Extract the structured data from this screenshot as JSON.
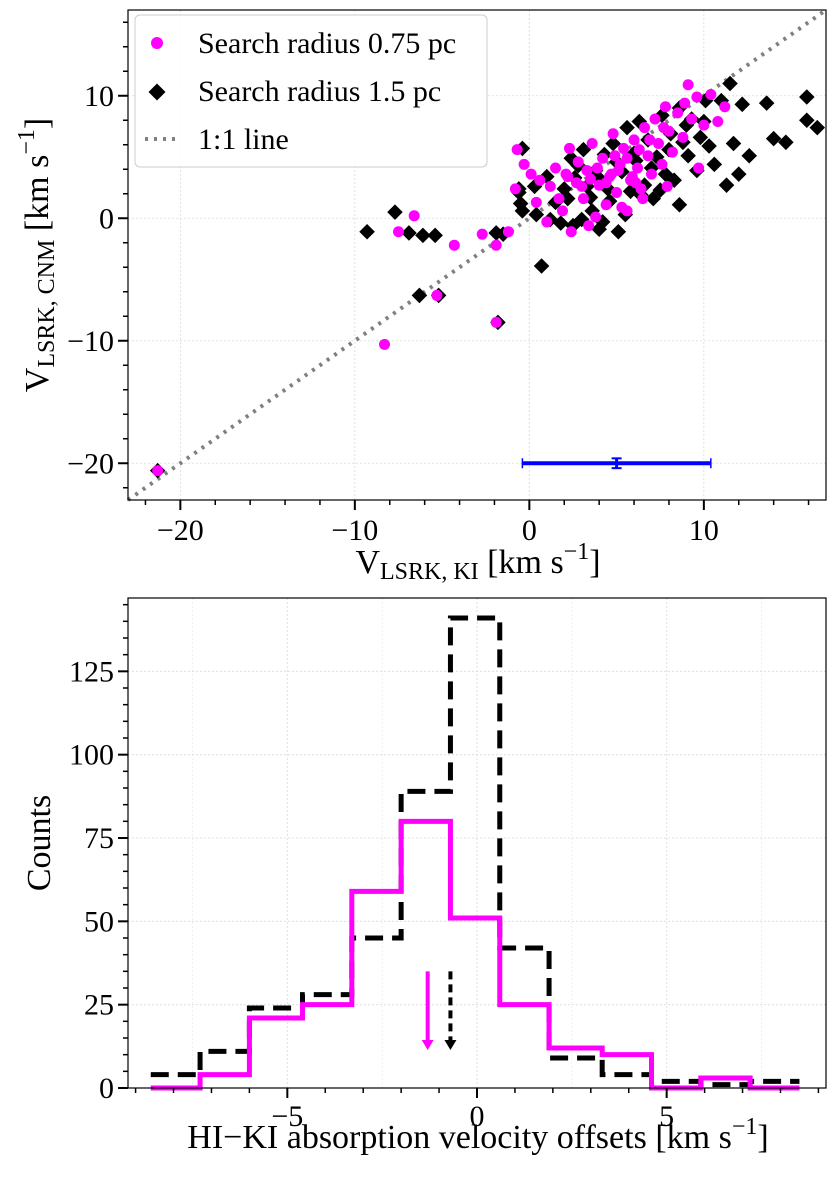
{
  "chart_data": [
    {
      "type": "scatter",
      "xlabel": {
        "main": "V",
        "sub": "LSRK, KI",
        "unit": "[km s",
        "exp": "−1",
        "close": "]"
      },
      "ylabel": {
        "main": "V",
        "sub": "LSRK, CNM",
        "unit": "[km s",
        "exp": "−1",
        "close": "]"
      },
      "xlim": [
        -23,
        17
      ],
      "ylim": [
        -23,
        17
      ],
      "xticks": [
        -20,
        -10,
        0,
        10
      ],
      "xtick_labels": [
        "−20",
        "−10",
        "0",
        "10"
      ],
      "yticks": [
        -20,
        -10,
        0,
        10
      ],
      "ytick_labels": [
        "−20",
        "−10",
        "0",
        "10"
      ],
      "grid": true,
      "legend_position": "top-left",
      "legend": [
        {
          "label": "Search radius 0.75 pc",
          "marker": "circle",
          "color": "#ff00ff"
        },
        {
          "label": "Search radius 1.5 pc",
          "marker": "diamond",
          "color": "#000000"
        },
        {
          "label": "1:1 line",
          "marker": "dotted-line",
          "color": "#808080"
        }
      ],
      "series": [
        {
          "name": "Search radius 1.5 pc",
          "color": "#000000",
          "marker": "diamond",
          "points": [
            [
              -21.3,
              -20.6
            ],
            [
              -9.3,
              -1.1
            ],
            [
              -7.7,
              0.5
            ],
            [
              -6.9,
              -1.2
            ],
            [
              -6.3,
              -6.3
            ],
            [
              -6.1,
              -1.4
            ],
            [
              -5.4,
              -1.4
            ],
            [
              -5.2,
              -6.3
            ],
            [
              -1.8,
              -8.5
            ],
            [
              -1.9,
              -1.2
            ],
            [
              -1.5,
              -1.3
            ],
            [
              -0.6,
              2.1
            ],
            [
              -0.6,
              2.4
            ],
            [
              -0.5,
              1.2
            ],
            [
              -0.4,
              5.7
            ],
            [
              -0.4,
              0.6
            ],
            [
              0.3,
              2.6
            ],
            [
              0.4,
              0.3
            ],
            [
              0.7,
              -3.9
            ],
            [
              1.0,
              3.4
            ],
            [
              1.2,
              -0.1
            ],
            [
              1.5,
              1.3
            ],
            [
              1.8,
              -0.4
            ],
            [
              2.0,
              2.4
            ],
            [
              2.2,
              1.6
            ],
            [
              2.6,
              3.3
            ],
            [
              2.8,
              4.3
            ],
            [
              3.0,
              -0.1
            ],
            [
              3.3,
              2.6
            ],
            [
              3.6,
              0.6
            ],
            [
              3.8,
              3.9
            ],
            [
              4.0,
              -0.9
            ],
            [
              4.3,
              5.2
            ],
            [
              4.5,
              2.4
            ],
            [
              4.8,
              6.1
            ],
            [
              5.1,
              -1.1
            ],
            [
              5.3,
              3.8
            ],
            [
              5.6,
              7.4
            ],
            [
              5.8,
              2.2
            ],
            [
              6.1,
              4.7
            ],
            [
              6.3,
              7.9
            ],
            [
              6.6,
              2.7
            ],
            [
              6.8,
              6.4
            ],
            [
              7.1,
              1.6
            ],
            [
              7.3,
              5.0
            ],
            [
              7.6,
              8.4
            ],
            [
              7.8,
              3.6
            ],
            [
              8.1,
              6.9
            ],
            [
              8.3,
              3.1
            ],
            [
              8.6,
              9.0
            ],
            [
              8.8,
              6.2
            ],
            [
              9.1,
              5.1
            ],
            [
              9.3,
              8.1
            ],
            [
              9.6,
              3.9
            ],
            [
              9.8,
              6.6
            ],
            [
              10.1,
              9.6
            ],
            [
              10.3,
              5.9
            ],
            [
              10.6,
              4.4
            ],
            [
              11.0,
              9.6
            ],
            [
              11.3,
              2.7
            ],
            [
              11.5,
              11.0
            ],
            [
              11.7,
              6.1
            ],
            [
              12.0,
              3.6
            ],
            [
              12.2,
              9.3
            ],
            [
              12.6,
              5.1
            ],
            [
              13.6,
              9.4
            ],
            [
              14.0,
              6.5
            ],
            [
              14.7,
              6.2
            ],
            [
              15.9,
              9.9
            ],
            [
              15.9,
              8.0
            ],
            [
              16.5,
              7.4
            ],
            [
              2.4,
              4.9
            ],
            [
              3.1,
              5.6
            ],
            [
              4.1,
              3.1
            ],
            [
              5.0,
              4.6
            ],
            [
              6.0,
              5.3
            ],
            [
              7.0,
              4.1
            ],
            [
              8.0,
              5.6
            ],
            [
              9.0,
              7.6
            ],
            [
              10.0,
              7.9
            ],
            [
              3.5,
              1.7
            ],
            [
              4.6,
              1.4
            ],
            [
              6.4,
              1.9
            ],
            [
              7.5,
              2.3
            ],
            [
              8.6,
              1.1
            ],
            [
              5.5,
              0.3
            ],
            [
              4.2,
              -0.3
            ],
            [
              2.5,
              -0.6
            ]
          ]
        },
        {
          "name": "Search radius 0.75 pc",
          "color": "#ff00ff",
          "marker": "circle",
          "points": [
            [
              -21.3,
              -20.6
            ],
            [
              -8.3,
              -10.3
            ],
            [
              -7.5,
              -1.1
            ],
            [
              -6.6,
              0.2
            ],
            [
              -5.3,
              -6.3
            ],
            [
              -4.3,
              -2.2
            ],
            [
              -2.7,
              -1.3
            ],
            [
              -1.9,
              -8.5
            ],
            [
              -1.9,
              -2.2
            ],
            [
              -1.2,
              -1.1
            ],
            [
              -0.8,
              2.4
            ],
            [
              -0.7,
              5.6
            ],
            [
              -0.3,
              4.4
            ],
            [
              0.1,
              3.6
            ],
            [
              0.4,
              1.3
            ],
            [
              0.6,
              3.1
            ],
            [
              1.0,
              -0.3
            ],
            [
              1.2,
              2.6
            ],
            [
              1.5,
              4.1
            ],
            [
              1.7,
              1.6
            ],
            [
              1.9,
              0.6
            ],
            [
              2.1,
              3.6
            ],
            [
              2.3,
              5.7
            ],
            [
              2.4,
              -1.1
            ],
            [
              2.7,
              2.9
            ],
            [
              2.8,
              4.6
            ],
            [
              3.1,
              1.6
            ],
            [
              3.3,
              3.9
            ],
            [
              3.6,
              6.1
            ],
            [
              3.8,
              0.1
            ],
            [
              4.0,
              2.7
            ],
            [
              4.2,
              4.9
            ],
            [
              4.4,
              1.1
            ],
            [
              4.6,
              3.4
            ],
            [
              4.8,
              6.9
            ],
            [
              5.0,
              2.1
            ],
            [
              5.2,
              4.4
            ],
            [
              5.4,
              5.7
            ],
            [
              5.6,
              0.6
            ],
            [
              5.8,
              3.1
            ],
            [
              6.0,
              6.4
            ],
            [
              6.2,
              4.1
            ],
            [
              6.4,
              2.4
            ],
            [
              6.6,
              7.4
            ],
            [
              6.8,
              5.1
            ],
            [
              7.0,
              3.6
            ],
            [
              7.2,
              8.1
            ],
            [
              7.4,
              6.1
            ],
            [
              7.6,
              4.4
            ],
            [
              7.8,
              9.1
            ],
            [
              8.0,
              7.1
            ],
            [
              8.2,
              5.4
            ],
            [
              8.5,
              8.6
            ],
            [
              8.8,
              6.6
            ],
            [
              9.1,
              10.9
            ],
            [
              9.3,
              8.1
            ],
            [
              9.6,
              9.9
            ],
            [
              10.0,
              7.6
            ],
            [
              10.4,
              10.1
            ],
            [
              10.8,
              7.9
            ],
            [
              11.2,
              9.1
            ],
            [
              2.2,
              3.4
            ],
            [
              3.0,
              2.6
            ],
            [
              3.9,
              4.1
            ],
            [
              4.7,
              3.6
            ],
            [
              5.1,
              3.9
            ],
            [
              5.6,
              4.9
            ],
            [
              6.3,
              5.6
            ],
            [
              6.9,
              6.4
            ],
            [
              4.4,
              2.9
            ],
            [
              5.9,
              3.4
            ],
            [
              3.5,
              3.2
            ],
            [
              4.9,
              5.1
            ],
            [
              6.1,
              2.9
            ],
            [
              7.7,
              7.4
            ],
            [
              8.9,
              9.4
            ],
            [
              5.3,
              0.9
            ],
            [
              6.5,
              1.6
            ],
            [
              3.4,
              -0.6
            ],
            [
              7.9,
              2.6
            ],
            [
              9.7,
              4.1
            ]
          ]
        },
        {
          "name": "error bar",
          "color": "#0000ff",
          "x": 5.0,
          "y": -20.0,
          "xerr": 5.4,
          "yerr": 0.4
        }
      ]
    },
    {
      "type": "histogram",
      "xlabel": {
        "main": "HI−KI absorption velocity offsets",
        "unit": "[km s",
        "exp": "−1",
        "close": "]"
      },
      "ylabel": "Counts",
      "xlim": [
        -9.2,
        9.2
      ],
      "ylim": [
        0,
        147
      ],
      "xticks": [
        -5,
        0,
        5
      ],
      "xtick_labels": [
        "−5",
        "0",
        "5"
      ],
      "yticks": [
        0,
        25,
        50,
        75,
        100,
        125
      ],
      "ytick_labels": [
        "0",
        "25",
        "50",
        "75",
        "100",
        "125"
      ],
      "grid": true,
      "series": [
        {
          "color": "#000000",
          "style": "dashed",
          "edges": [
            -8.6,
            -7.3,
            -6.0,
            -4.6,
            -3.3,
            -2.0,
            -0.7,
            0.6,
            1.9,
            3.3,
            4.6,
            5.9,
            7.2,
            8.5
          ],
          "counts": [
            4,
            11,
            24,
            28,
            45,
            89,
            141,
            42,
            9,
            4,
            2,
            1,
            2
          ],
          "median_arrow": -0.7
        },
        {
          "color": "#ff00ff",
          "style": "solid",
          "edges": [
            -8.6,
            -7.3,
            -6.0,
            -4.6,
            -3.3,
            -2.0,
            -0.7,
            0.6,
            1.9,
            3.3,
            4.6,
            5.9,
            7.2,
            8.5
          ],
          "counts": [
            0,
            4,
            21,
            25,
            59,
            80,
            51,
            25,
            12,
            10,
            0,
            3,
            0
          ],
          "median_arrow": -1.3
        }
      ]
    }
  ]
}
